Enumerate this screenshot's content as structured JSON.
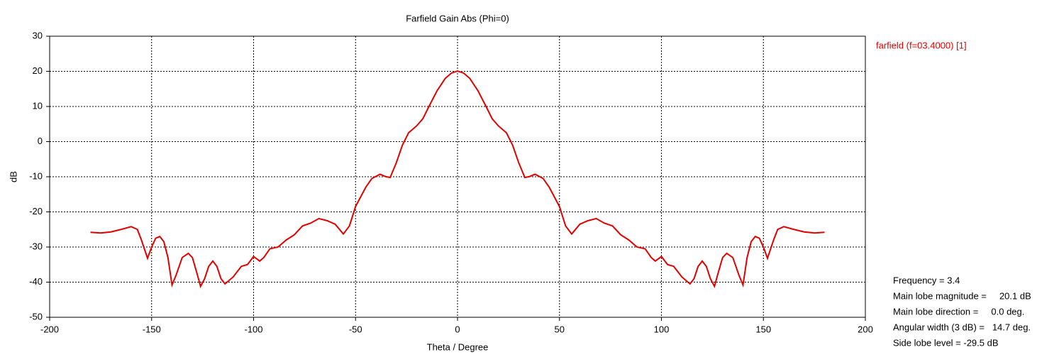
{
  "chart_data": {
    "type": "line",
    "title": "Farfield Gain Abs (Phi=0)",
    "x_label": "Theta / Degree",
    "y_label": "dB",
    "x": [
      -180,
      -175,
      -170,
      -165,
      -160,
      -157,
      -155,
      -152,
      -150,
      -148,
      -146,
      -144,
      -142,
      -140,
      -138,
      -135,
      -132,
      -130,
      -128,
      -126,
      -124,
      -122,
      -120,
      -118,
      -116,
      -114,
      -110,
      -106,
      -103,
      -100,
      -97,
      -95,
      -92,
      -88,
      -84,
      -80,
      -76,
      -72,
      -68,
      -64,
      -60,
      -56,
      -53,
      -50,
      -45,
      -42,
      -38,
      -35,
      -33,
      -30,
      -27,
      -24,
      -20,
      -17,
      -14,
      -10,
      -6,
      -3,
      0,
      3,
      6,
      10,
      14,
      17,
      20,
      24,
      27,
      30,
      33,
      35,
      38,
      42,
      45,
      50,
      53,
      56,
      60,
      64,
      68,
      72,
      76,
      80,
      84,
      88,
      92,
      95,
      97,
      100,
      103,
      106,
      110,
      114,
      116,
      118,
      120,
      122,
      124,
      126,
      128,
      130,
      132,
      135,
      138,
      140,
      142,
      144,
      146,
      148,
      150,
      152,
      155,
      157,
      160,
      165,
      170,
      175,
      180
    ],
    "series": [
      {
        "name": "farfield (f=03.4000) [1]",
        "color": "#e00000",
        "values": [
          -25.8,
          -26,
          -25.7,
          -25,
          -24.2,
          -25,
          -28,
          -33.2,
          -30,
          -27.5,
          -27,
          -28.5,
          -33,
          -40.8,
          -38,
          -33,
          -31.8,
          -33,
          -37,
          -41.2,
          -39,
          -35.5,
          -34,
          -35.5,
          -39,
          -40.5,
          -38.5,
          -35.5,
          -35,
          -32.7,
          -34,
          -33,
          -30.5,
          -30,
          -28,
          -26.5,
          -24,
          -23.2,
          -21.9,
          -22.5,
          -23.5,
          -26.3,
          -24,
          -18.5,
          -13,
          -10.5,
          -9.3,
          -10,
          -10.2,
          -6,
          -1,
          2.5,
          4.5,
          6.5,
          10,
          14.5,
          18,
          19.5,
          20.1,
          19.5,
          18,
          14.5,
          10,
          6.5,
          4.5,
          2.5,
          -1,
          -6,
          -10.2,
          -10,
          -9.3,
          -10.5,
          -13,
          -18.5,
          -24,
          -26.3,
          -23.5,
          -22.5,
          -21.9,
          -23.2,
          -24,
          -26.5,
          -28,
          -30,
          -30.5,
          -33,
          -34,
          -32.7,
          -35,
          -35.5,
          -38.5,
          -40.5,
          -39,
          -35.5,
          -34,
          -35.5,
          -39,
          -41.2,
          -37,
          -33,
          -31.8,
          -33,
          -38,
          -40.8,
          -33,
          -28.5,
          -27,
          -27.5,
          -30,
          -33.2,
          -28,
          -25,
          -24.2,
          -25,
          -25.7,
          -26,
          -25.8
        ]
      }
    ],
    "xlim": [
      -200,
      200
    ],
    "xticks": [
      -200,
      -150,
      -100,
      -50,
      0,
      50,
      100,
      150,
      200
    ],
    "ylim": [
      -50,
      30
    ],
    "yticks": [
      -50,
      -40,
      -30,
      -20,
      -10,
      0,
      10,
      20,
      30
    ],
    "grid": true,
    "annotations": [
      "Frequency = 3.4",
      "Main lobe magnitude =     20.1 dB",
      "Main lobe direction =     0.0 deg.",
      "Angular width (3 dB) =   14.7 deg.",
      "Side lobe level = -29.5 dB"
    ]
  }
}
